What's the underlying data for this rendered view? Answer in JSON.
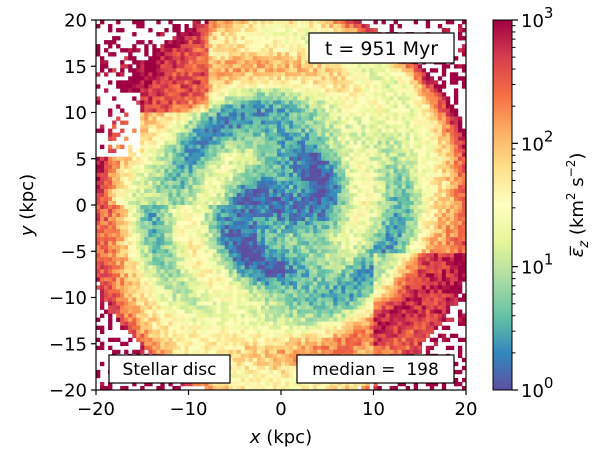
{
  "chart_data": {
    "type": "heatmap",
    "title": "",
    "xlabel": {
      "var": "x",
      "unit": "(kpc)"
    },
    "ylabel": {
      "var": "y",
      "unit": "(kpc)"
    },
    "xlim": [
      -20,
      20
    ],
    "ylim": [
      -20,
      20
    ],
    "xticks": [
      -20,
      -10,
      0,
      10,
      20
    ],
    "yticks": [
      -20,
      -15,
      -10,
      -5,
      0,
      5,
      10,
      15,
      20
    ],
    "xtick_labels": [
      "−20",
      "−10",
      "0",
      "10",
      "20"
    ],
    "ytick_labels": [
      "−20",
      "−15",
      "−10",
      "−5",
      "0",
      "5",
      "10",
      "15",
      "20"
    ],
    "colorbar": {
      "scale": "log",
      "range": [
        1,
        1000
      ],
      "major_ticks": [
        {
          "value": 1,
          "base": "10",
          "exp": "0"
        },
        {
          "value": 10,
          "base": "10",
          "exp": "1"
        },
        {
          "value": 100,
          "base": "10",
          "exp": "2"
        },
        {
          "value": 1000,
          "base": "10",
          "exp": "3"
        }
      ],
      "label": {
        "text": "ε̅",
        "sub": "z",
        "units": "(km",
        "sup1": "2",
        "mid": " s",
        "sup2": "−2",
        "end": ")"
      },
      "colormap": "Spectral_r",
      "stops": [
        "#5e4fa2",
        "#3288bd",
        "#66c2a5",
        "#abdda4",
        "#e6f598",
        "#ffffbf",
        "#fee08b",
        "#fdae61",
        "#f46d43",
        "#d53e4f",
        "#9e0142"
      ]
    },
    "annotations": {
      "time": "t = 951 Myr",
      "component": "Stellar disc",
      "median_label": "median =  198"
    },
    "description_features": {
      "pattern": "spiral arms with low values in disc centre",
      "median": 198
    }
  }
}
